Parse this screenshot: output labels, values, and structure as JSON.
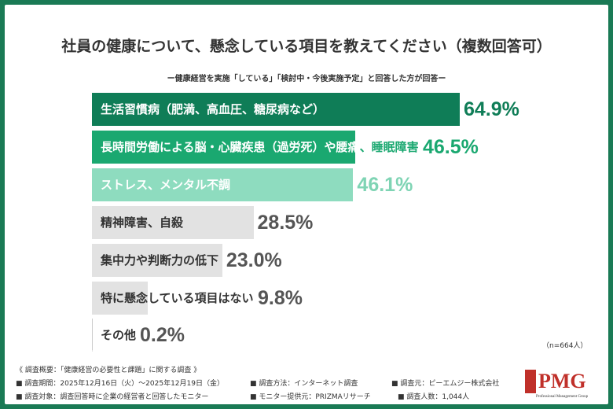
{
  "chart_data": {
    "type": "bar",
    "orientation": "horizontal",
    "title": "社員の健康について、懸念している項目を教えてください（複数回答可）",
    "subtitle": "ー健康経営を実施「している」「検討中・今後実施予定」と回答した方が回答ー",
    "categories": [
      "生活習慣病（肥満、高血圧、糖尿病など）",
      "長時間労働による脳・心臓疾患（過労死）や腰痛、睡眠障害",
      "ストレス、メンタル不調",
      "精神障害、自殺",
      "集中力や判断力の低下",
      "特に懸念している項目はない",
      "その他"
    ],
    "values": [
      64.9,
      46.5,
      46.1,
      28.5,
      23.0,
      9.8,
      0.2
    ],
    "value_labels": [
      "64.9%",
      "46.5%",
      "46.1%",
      "28.5%",
      "23.0%",
      "9.8%",
      "0.2%"
    ],
    "unit": "%",
    "bar_colors": [
      "#0f7d57",
      "#1aa870",
      "#8edcbf",
      "#e2e2e2",
      "#e2e2e2",
      "#e2e2e2",
      "#e2e2e2"
    ],
    "value_colors": [
      "#0f7d57",
      "#1aa870",
      "#7fd4b4",
      "#555555",
      "#555555",
      "#555555",
      "#555555"
    ],
    "label_colors": [
      "#ffffff",
      "#ffffff",
      "#ffffff",
      "#333333",
      "#333333",
      "#333333",
      "#333333"
    ],
    "overflow_label_color": "#1aa870",
    "note": "（n=664人）"
  },
  "footer": {
    "heading": "《 調査概要：「健康経営の必要性と課題」に関する調査 》",
    "items": [
      "■ 調査期間：2025年12月16日（火）～2025年12月19日（金）",
      "■ 調査方法：インターネット調査",
      "■ 調査元：ピーエムジー株式会社",
      "■ 調査対象：調査回答時に企業の経営者と回答したモニター",
      "■ モニター提供元：PRIZMAリサーチ",
      "■ 調査人数：1,044人"
    ]
  },
  "logo": {
    "text": "PMG",
    "subtext": "Professional Management Group"
  },
  "colors": {
    "frame": "#1a7a55",
    "logo": "#c0302a"
  }
}
